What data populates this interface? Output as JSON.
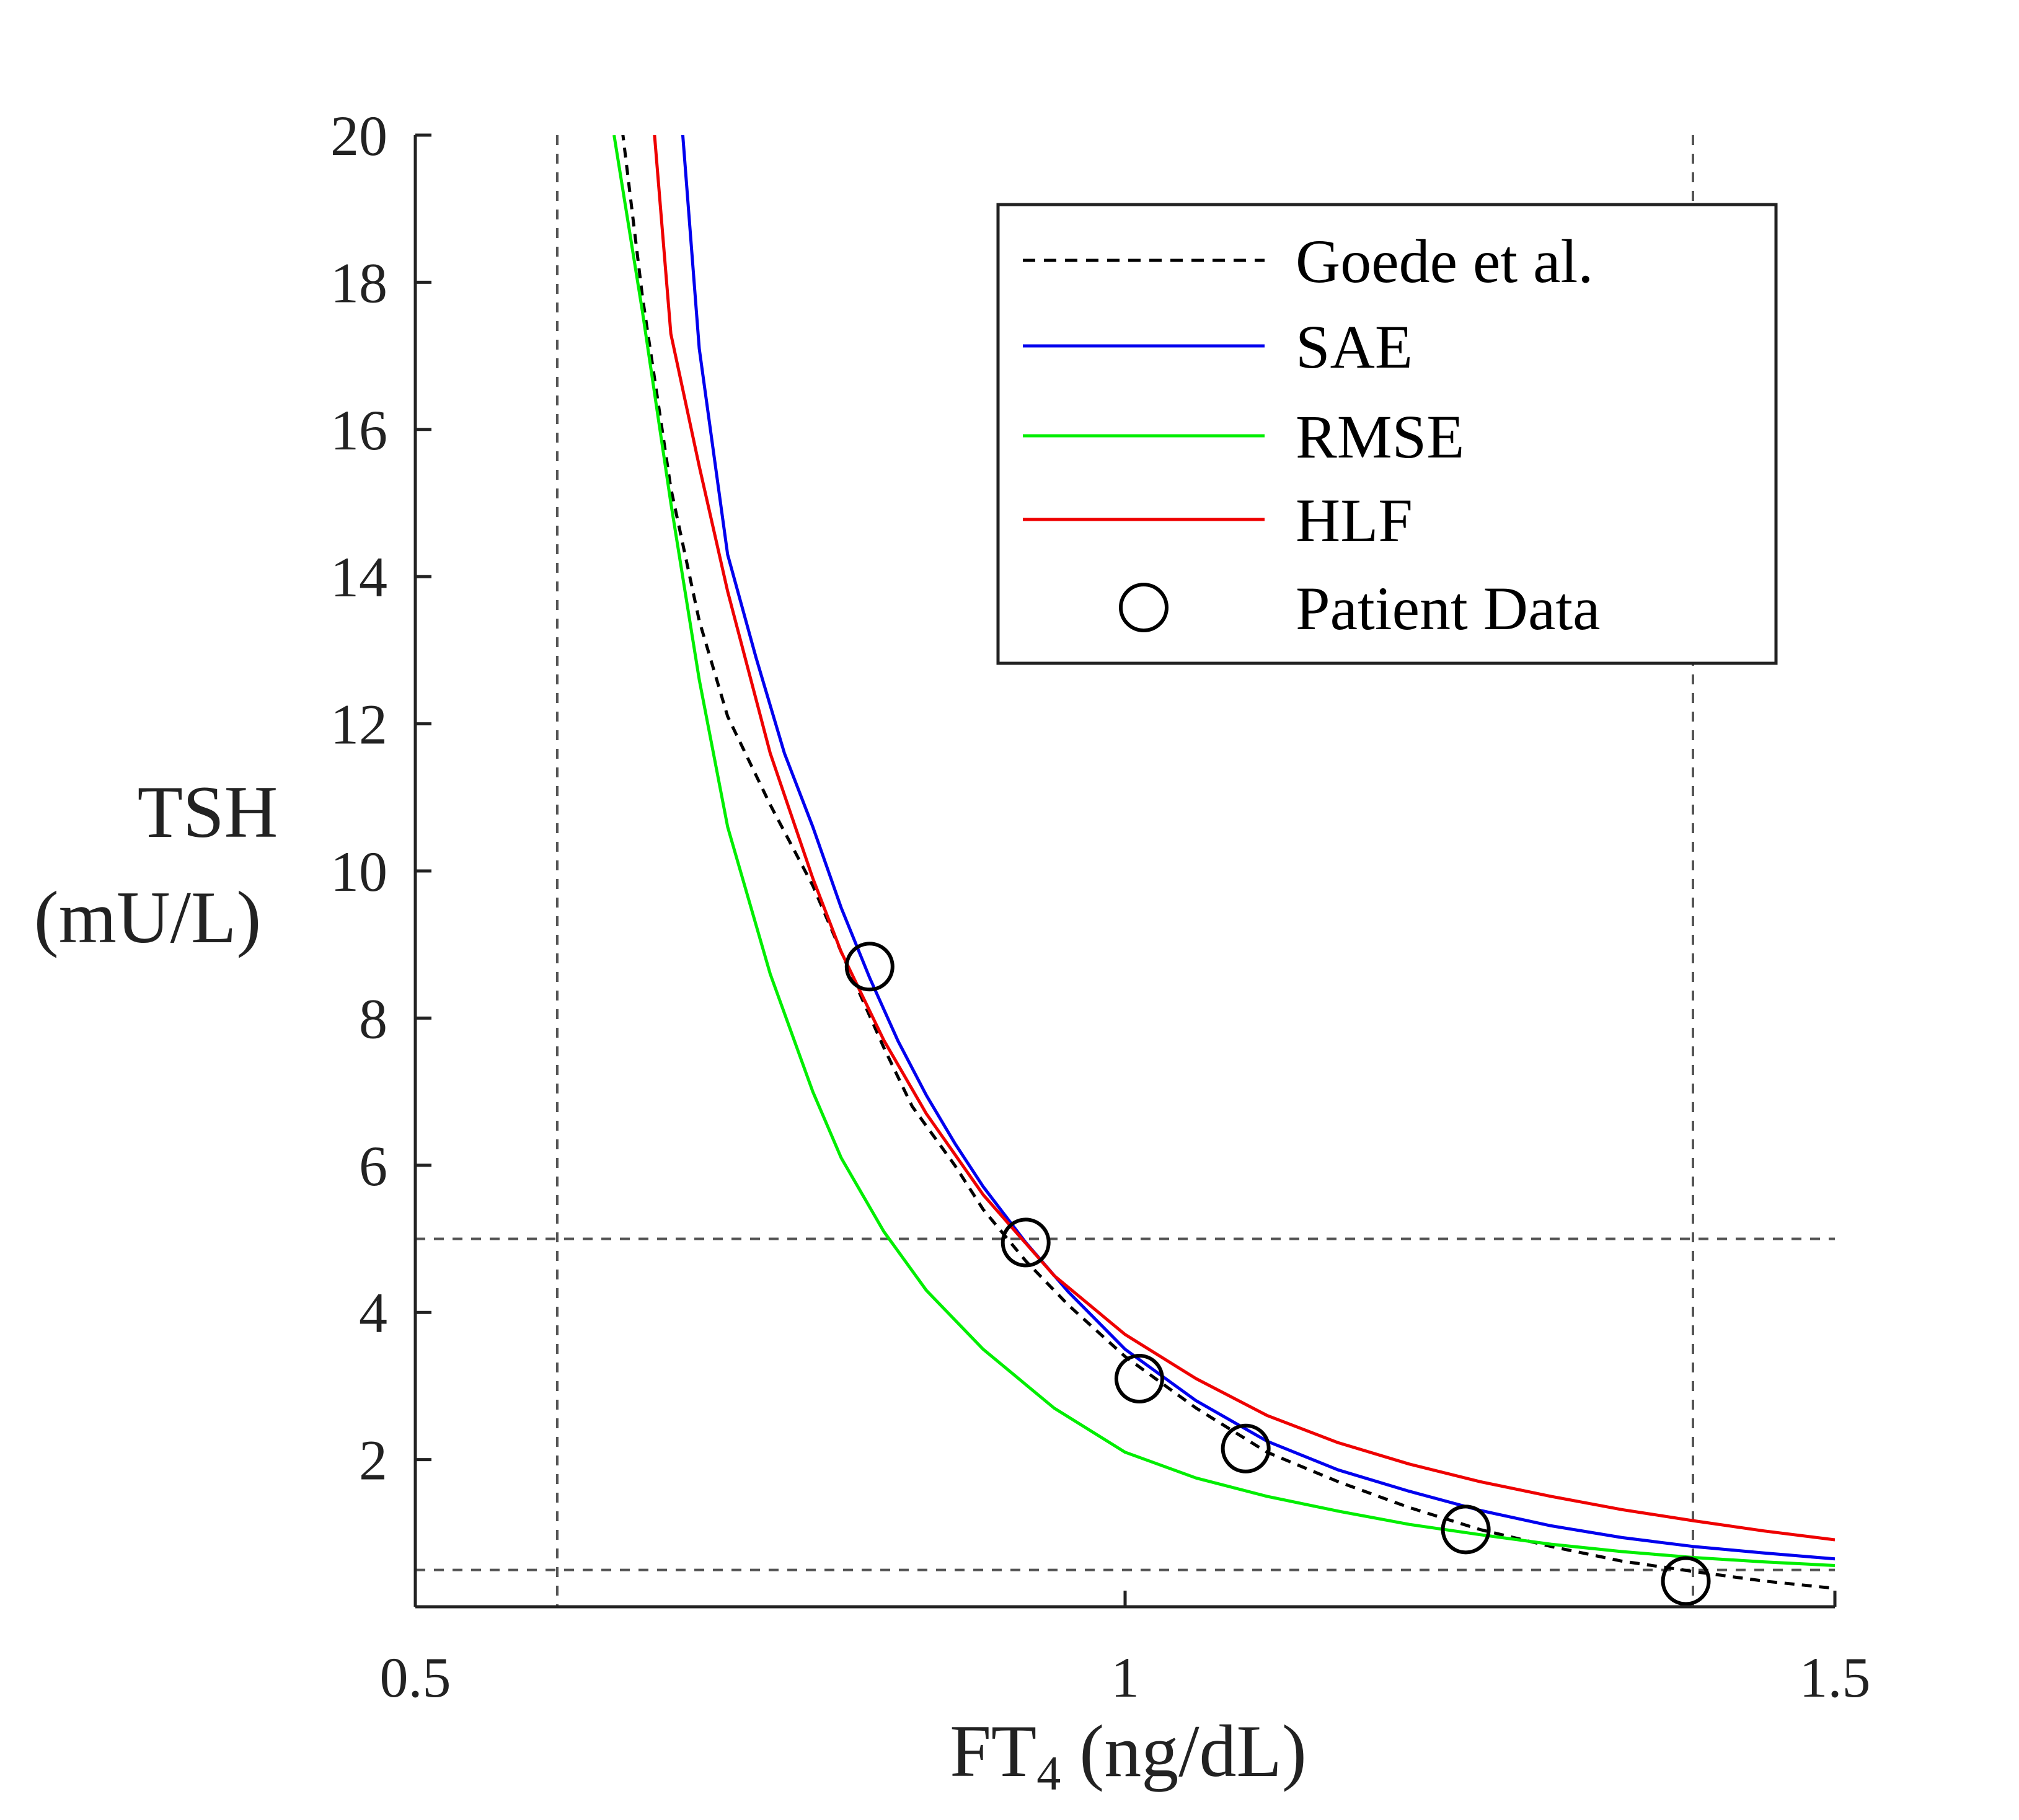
{
  "chart_data": {
    "type": "line",
    "title": "",
    "xlabel": "FT",
    "xlabel_subscript": "4",
    "xlabel_units": " (ng/dL)",
    "ylabel_lines": [
      "TSH",
      "(mU/L)"
    ],
    "xlim": [
      0.5,
      1.5
    ],
    "ylim": [
      0,
      20
    ],
    "xticks": [
      0.5,
      1,
      1.5
    ],
    "xtick_labels": [
      "0.5",
      "1",
      "1.5"
    ],
    "yticks": [
      2,
      4,
      6,
      8,
      10,
      12,
      14,
      16,
      18,
      20
    ],
    "ytick_labels": [
      "2",
      "4",
      "6",
      "8",
      "10",
      "12",
      "14",
      "16",
      "18",
      "20"
    ],
    "grid": false,
    "reference_lines": {
      "x": [
        0.6,
        1.4
      ],
      "y": [
        0.5,
        5
      ]
    },
    "legend_position": "top-right",
    "series": [
      {
        "name": "Goede et al.",
        "style": "dashed",
        "color": "#000000",
        "x": [
          0.64,
          0.66,
          0.68,
          0.7,
          0.72,
          0.75,
          0.78,
          0.8,
          0.83,
          0.85,
          0.88,
          0.9,
          0.93,
          0.96,
          1.0,
          1.05,
          1.1,
          1.15,
          1.2,
          1.25,
          1.3,
          1.35,
          1.4,
          1.45,
          1.5
        ],
        "y": [
          21.0,
          17.8,
          15.2,
          13.4,
          12.1,
          10.9,
          9.8,
          8.9,
          7.6,
          6.8,
          6.0,
          5.4,
          4.7,
          4.1,
          3.4,
          2.7,
          2.1,
          1.7,
          1.35,
          1.05,
          0.82,
          0.62,
          0.48,
          0.35,
          0.25
        ]
      },
      {
        "name": "SAE",
        "style": "solid",
        "color": "#0000ee",
        "x": [
          0.68,
          0.7,
          0.72,
          0.74,
          0.76,
          0.78,
          0.8,
          0.82,
          0.84,
          0.86,
          0.88,
          0.9,
          0.93,
          0.96,
          1.0,
          1.05,
          1.1,
          1.15,
          1.2,
          1.25,
          1.3,
          1.35,
          1.4,
          1.45,
          1.5
        ],
        "y": [
          22.1,
          17.1,
          14.3,
          12.9,
          11.6,
          10.6,
          9.5,
          8.55,
          7.69,
          6.95,
          6.3,
          5.71,
          4.95,
          4.28,
          3.5,
          2.8,
          2.25,
          1.86,
          1.57,
          1.31,
          1.1,
          0.94,
          0.82,
          0.73,
          0.65
        ]
      },
      {
        "name": "RMSE",
        "style": "solid",
        "color": "#00ee00",
        "x": [
          0.64,
          0.65,
          0.66,
          0.67,
          0.68,
          0.7,
          0.72,
          0.75,
          0.78,
          0.8,
          0.83,
          0.86,
          0.9,
          0.95,
          1.0,
          1.05,
          1.1,
          1.15,
          1.2,
          1.25,
          1.3,
          1.35,
          1.4,
          1.45,
          1.5
        ],
        "y": [
          20.0,
          18.8,
          17.6,
          16.3,
          15.0,
          12.6,
          10.6,
          8.6,
          7.0,
          6.1,
          5.1,
          4.3,
          3.5,
          2.7,
          2.1,
          1.75,
          1.5,
          1.3,
          1.12,
          0.98,
          0.85,
          0.75,
          0.67,
          0.61,
          0.56
        ]
      },
      {
        "name": "HLF",
        "style": "solid",
        "color": "#ee0000",
        "x": [
          0.66,
          0.68,
          0.7,
          0.72,
          0.75,
          0.78,
          0.8,
          0.83,
          0.86,
          0.9,
          0.95,
          1.0,
          1.05,
          1.1,
          1.15,
          1.2,
          1.25,
          1.3,
          1.35,
          1.4,
          1.45,
          1.5
        ],
        "y": [
          22.0,
          17.3,
          15.5,
          13.8,
          11.6,
          9.9,
          8.9,
          7.7,
          6.7,
          5.6,
          4.5,
          3.7,
          3.1,
          2.6,
          2.23,
          1.94,
          1.7,
          1.5,
          1.32,
          1.17,
          1.03,
          0.91
        ]
      }
    ],
    "scatter": {
      "name": "Patient Data",
      "marker": "open-circle",
      "color": "#000000",
      "x": [
        0.82,
        0.93,
        1.01,
        1.085,
        1.24,
        1.395
      ],
      "y": [
        8.7,
        4.95,
        3.1,
        2.15,
        1.05,
        0.35
      ]
    },
    "legend_entries": [
      "Goede et al.",
      "SAE",
      "RMSE",
      "HLF",
      "Patient Data"
    ]
  }
}
